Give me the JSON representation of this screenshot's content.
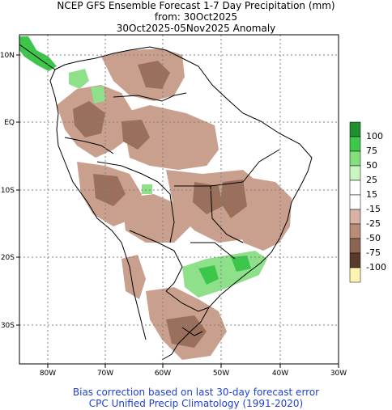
{
  "titles": {
    "line1": "NCEP GFS Ensemble Forecast 1-7 Day Precipitation (mm)",
    "line2": "from: 30Oct2025",
    "line3": "30Oct2025-05Nov2025 Anomaly"
  },
  "axes": {
    "lon_ticks": [
      "80W",
      "70W",
      "60W",
      "50W",
      "40W",
      "30W"
    ],
    "lat_ticks": [
      "10N",
      "EQ",
      "10S",
      "20S",
      "30S"
    ]
  },
  "legend": {
    "labels": [
      "100",
      "75",
      "50",
      "25",
      "15",
      "-15",
      "-25",
      "-50",
      "-75",
      "-100"
    ],
    "colors": [
      "#1f8f2f",
      "#3ec84a",
      "#84e07c",
      "#c8f5c0",
      "#ffffff",
      "#d7b3a3",
      "#b98c78",
      "#8c6454",
      "#5a3a2c",
      "#fff3b0"
    ]
  },
  "footer": {
    "line1": "Bias correction based on last 30-day forecast error",
    "line2": "CPC Unified Precip Climatology (1991-2020)"
  },
  "colors": {
    "negative_anomaly": "#c9a08e",
    "strong_negative": "#9a6f5c",
    "positive_anomaly": "#8fe08a",
    "strong_positive": "#3cc64a",
    "grid": "#808080",
    "footer_text": "#1f3fd6"
  }
}
